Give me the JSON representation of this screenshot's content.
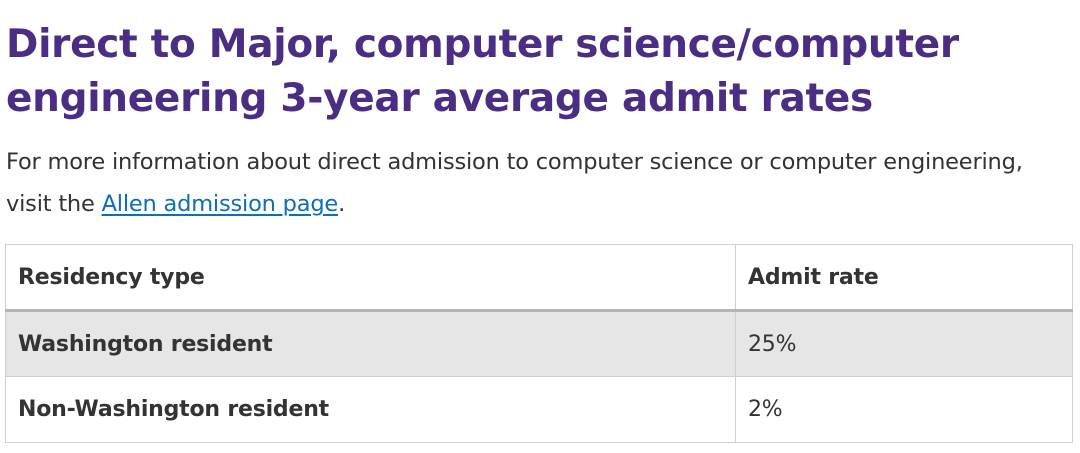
{
  "heading": "Direct to Major, computer science/computer engineering 3-year average admit rates",
  "intro": {
    "text_before": "For more information about direct admission to computer science or computer engineering, visit the ",
    "link_text": "Allen admission page",
    "text_after": "."
  },
  "table": {
    "headers": [
      "Residency type",
      "Admit rate"
    ],
    "rows": [
      {
        "residency": "Washington resident",
        "rate": "25%"
      },
      {
        "residency": "Non-Washington resident",
        "rate": "2%"
      }
    ]
  },
  "colors": {
    "heading": "#4b2e83",
    "link": "#0d6fb4",
    "text": "#333333",
    "shaded_row": "#e6e6e6"
  }
}
